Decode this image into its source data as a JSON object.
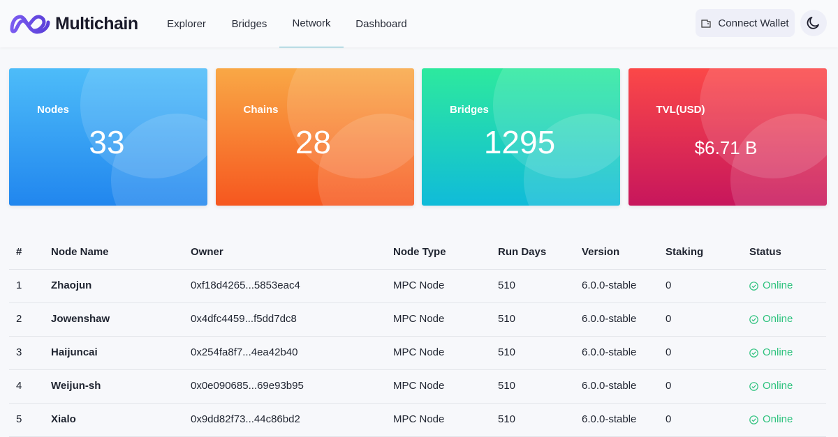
{
  "header": {
    "brand": "Multichain",
    "nav": [
      "Explorer",
      "Bridges",
      "Network",
      "Dashboard"
    ],
    "button": "Connect Wallet"
  },
  "stats": [
    {
      "label": "Nodes",
      "value": 33
    },
    {
      "label": "Chains",
      "value": 28
    },
    {
      "label": "Bridges",
      "value": 1295
    },
    {
      "label": "TVL(USD)",
      "value": "$6.71 B"
    }
  ],
  "table": {
    "columns": [
      "#",
      "Node Name",
      "Owner",
      "Node Type",
      "Run Days",
      "Version",
      "Staking",
      "Status"
    ],
    "rows": [
      [
        1,
        "Zhaojun",
        "0xf18d4265...5853eac4",
        "MPC Node",
        510,
        "6.0.0-stable",
        0,
        "Online"
      ],
      [
        2,
        "Jowenshaw",
        "0x4dfc4459...f5dd7dc8",
        "MPC Node",
        510,
        "6.0.0-stable",
        0,
        "Online"
      ],
      [
        3,
        "Haijuncai",
        "0x254fa8f7...4ea42b40",
        "MPC Node",
        510,
        "6.0.0-stable",
        0,
        "Online"
      ],
      [
        4,
        "Weijun-sh",
        "0x0e090685...69e93b95",
        "MPC Node",
        510,
        "6.0.0-stable",
        0,
        "Online"
      ],
      [
        5,
        "Xialo",
        "0x9dd82f73...44c86bd2",
        "MPC Node",
        510,
        "6.0.0-stable",
        0,
        "Online"
      ]
    ]
  }
}
